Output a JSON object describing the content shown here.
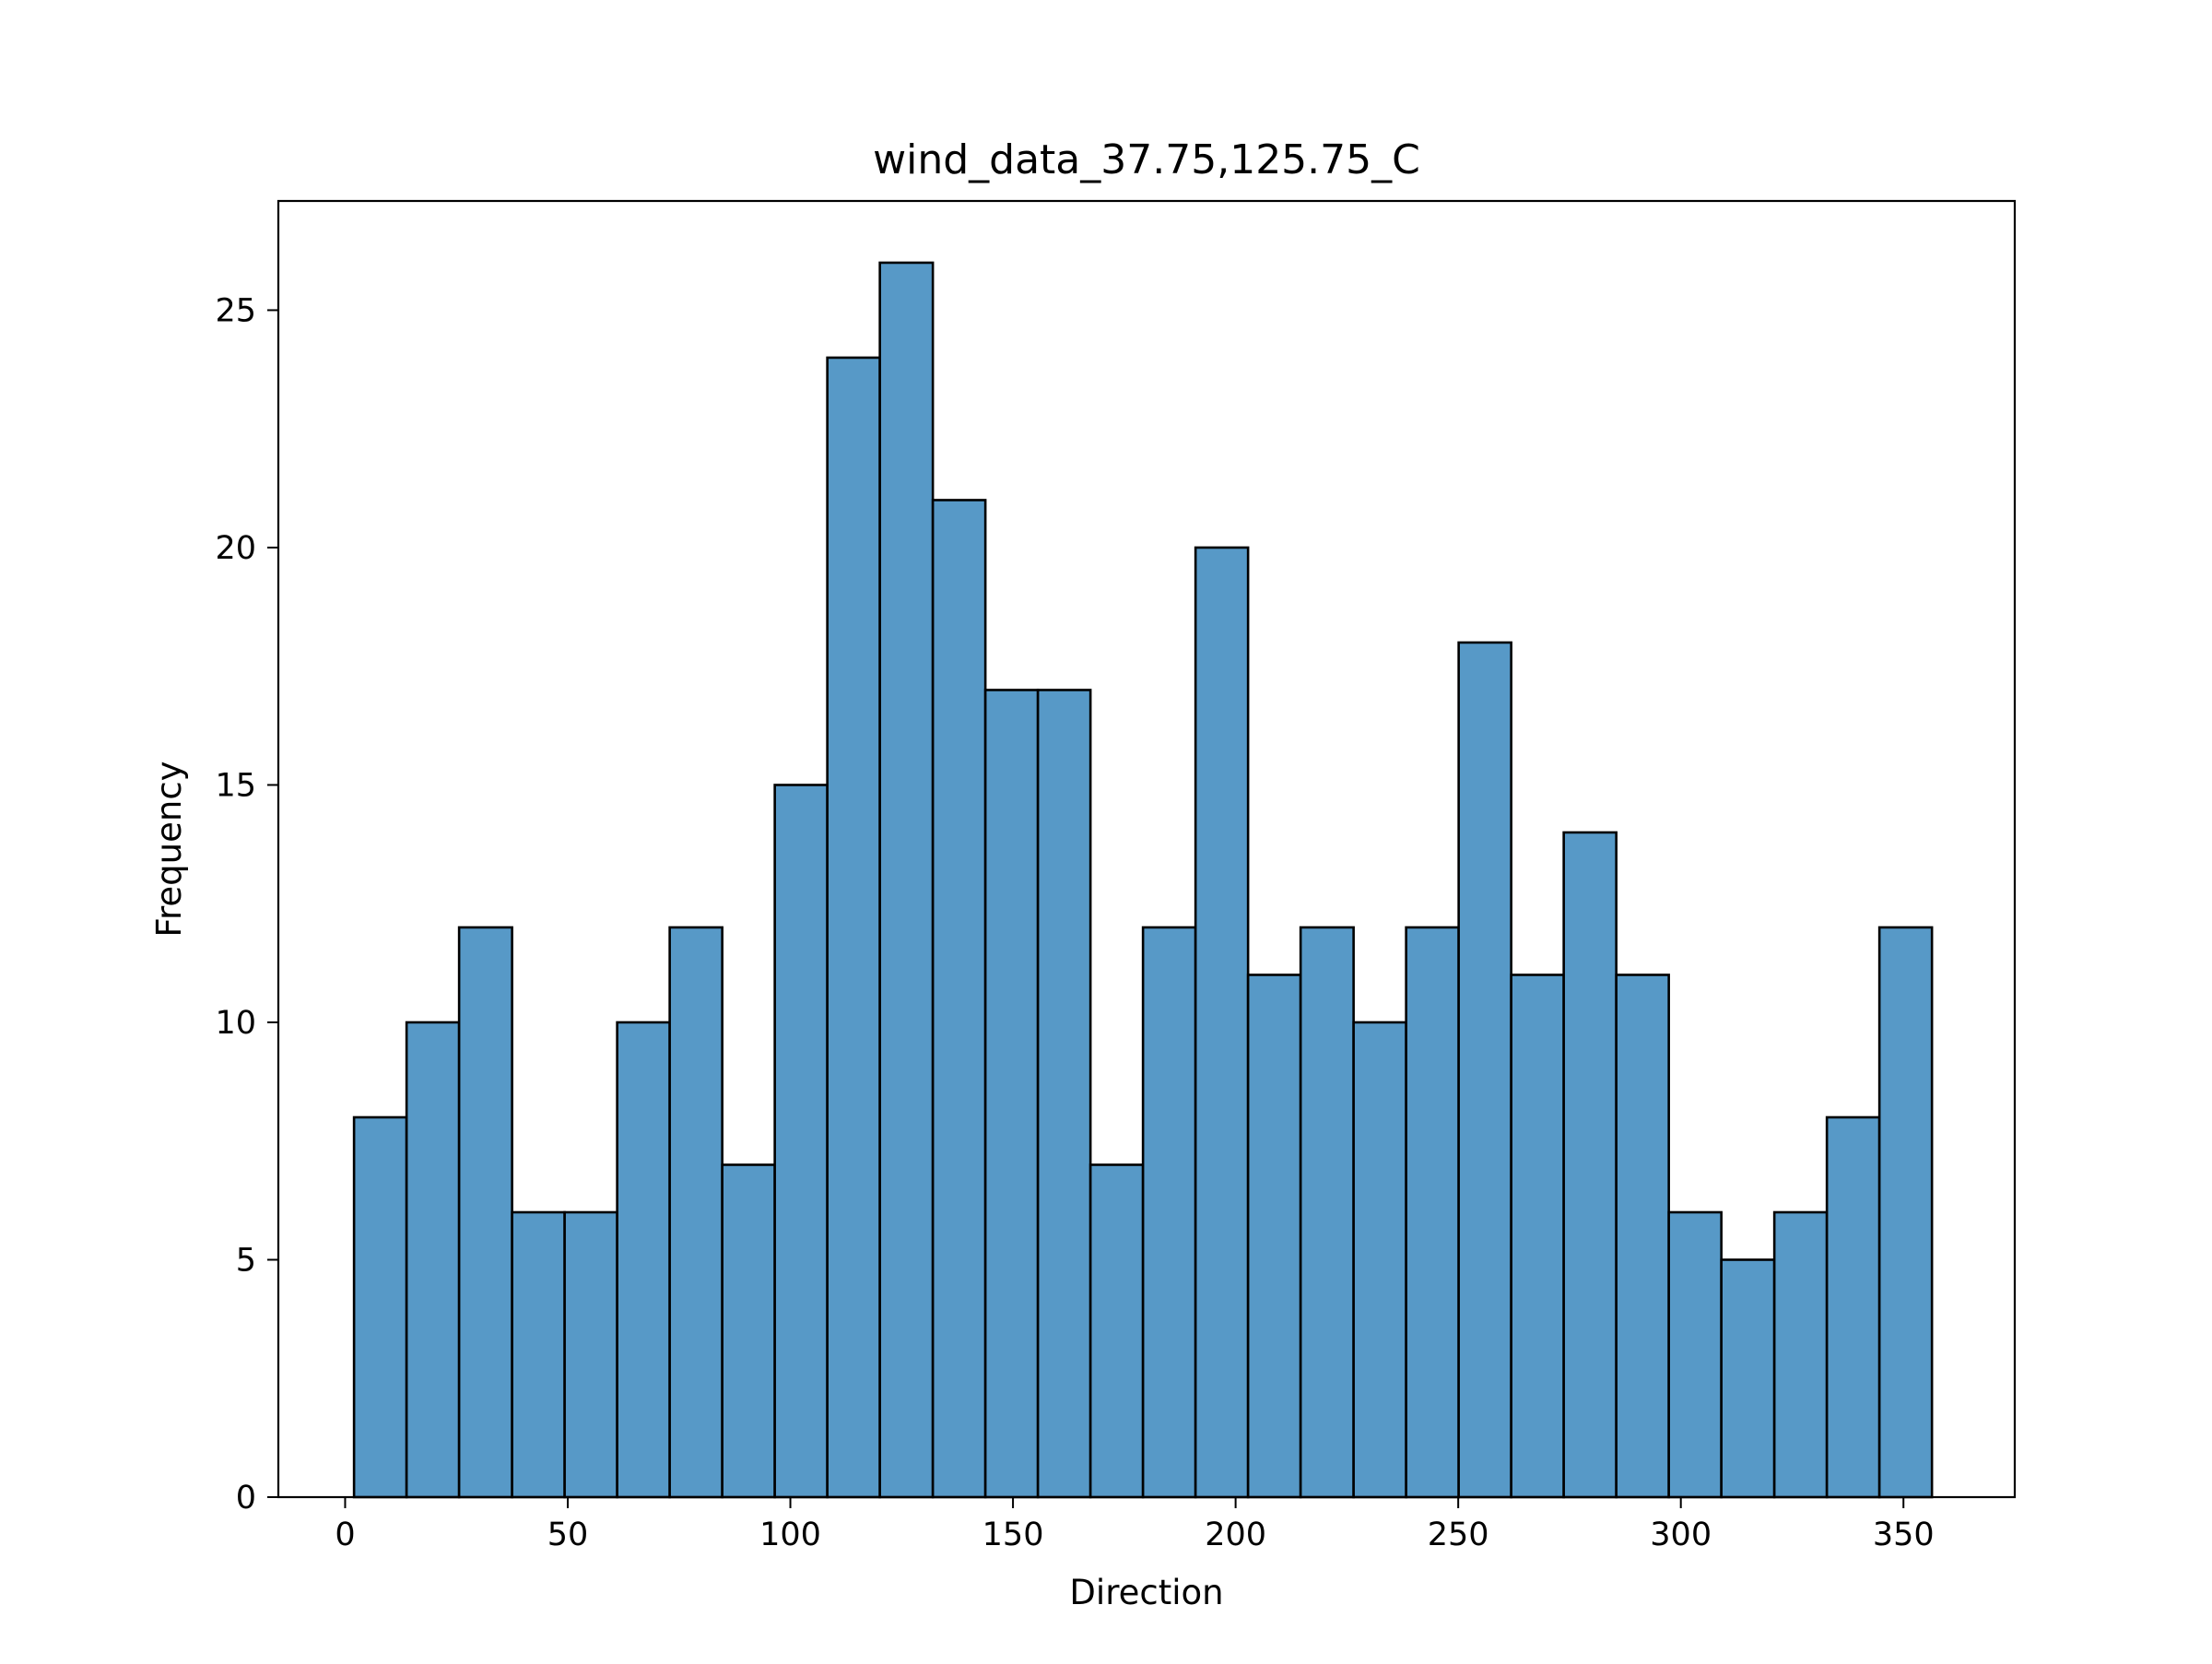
{
  "chart_data": {
    "type": "bar",
    "title": "wind_data_37.75,125.75_C",
    "xlabel": "Direction",
    "ylabel": "Frequency",
    "xlim": [
      -15,
      375
    ],
    "ylim": [
      0,
      27.3
    ],
    "xticks": [
      0,
      50,
      100,
      150,
      200,
      250,
      300,
      350
    ],
    "yticks": [
      0,
      5,
      10,
      15,
      20,
      25
    ],
    "grid": false,
    "legend": "none",
    "bins": [
      {
        "x0": 2,
        "x1": 13.8,
        "value": 8
      },
      {
        "x0": 13.8,
        "x1": 25.6,
        "value": 10
      },
      {
        "x0": 25.6,
        "x1": 37.5,
        "value": 12
      },
      {
        "x0": 37.5,
        "x1": 49.3,
        "value": 6
      },
      {
        "x0": 49.3,
        "x1": 61.1,
        "value": 6
      },
      {
        "x0": 61.1,
        "x1": 72.9,
        "value": 10
      },
      {
        "x0": 72.9,
        "x1": 84.7,
        "value": 12
      },
      {
        "x0": 84.7,
        "x1": 96.5,
        "value": 7
      },
      {
        "x0": 96.5,
        "x1": 108.3,
        "value": 15
      },
      {
        "x0": 108.3,
        "x1": 120.1,
        "value": 24
      },
      {
        "x0": 120.1,
        "x1": 132,
        "value": 26
      },
      {
        "x0": 132,
        "x1": 143.8,
        "value": 21
      },
      {
        "x0": 143.8,
        "x1": 155.6,
        "value": 17
      },
      {
        "x0": 155.6,
        "x1": 167.4,
        "value": 17
      },
      {
        "x0": 167.4,
        "x1": 179.2,
        "value": 7
      },
      {
        "x0": 179.2,
        "x1": 191,
        "value": 12
      },
      {
        "x0": 191,
        "x1": 202.8,
        "value": 20
      },
      {
        "x0": 202.8,
        "x1": 214.6,
        "value": 11
      },
      {
        "x0": 214.6,
        "x1": 226.5,
        "value": 12
      },
      {
        "x0": 226.5,
        "x1": 238.3,
        "value": 10
      },
      {
        "x0": 238.3,
        "x1": 250.1,
        "value": 12
      },
      {
        "x0": 250.1,
        "x1": 261.9,
        "value": 18
      },
      {
        "x0": 261.9,
        "x1": 273.7,
        "value": 11
      },
      {
        "x0": 273.7,
        "x1": 285.5,
        "value": 14
      },
      {
        "x0": 285.5,
        "x1": 297.3,
        "value": 11
      },
      {
        "x0": 297.3,
        "x1": 309.1,
        "value": 6
      },
      {
        "x0": 309.1,
        "x1": 321,
        "value": 5
      },
      {
        "x0": 321,
        "x1": 332.8,
        "value": 6
      },
      {
        "x0": 332.8,
        "x1": 344.6,
        "value": 8
      },
      {
        "x0": 344.6,
        "x1": 356.4,
        "value": 12
      }
    ],
    "colors": {
      "bar_fill": "#5799c7",
      "bar_edge": "#000000",
      "axes": "#000000"
    }
  }
}
